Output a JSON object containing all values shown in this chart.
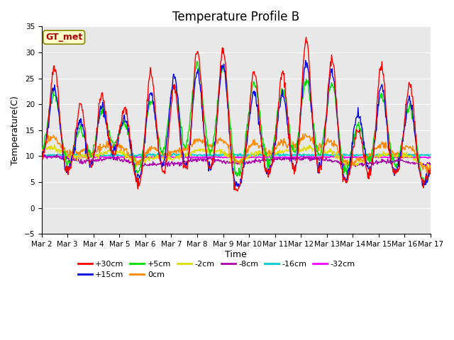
{
  "title": "Temperature Profile B",
  "xlabel": "Time",
  "ylabel": "Temperature(C)",
  "ylim": [
    -5,
    35
  ],
  "yticks": [
    -5,
    0,
    5,
    10,
    15,
    20,
    25,
    30,
    35
  ],
  "x_tick_labels": [
    "Mar 2",
    "Mar 3",
    "Mar 4",
    "Mar 5",
    "Mar 6",
    "Mar 7",
    "Mar 8",
    "Mar 9",
    "Mar 10",
    "Mar 11",
    "Mar 12",
    "Mar 13",
    "Mar 14",
    "Mar 15",
    "Mar 16",
    "Mar 17"
  ],
  "legend_entries": [
    {
      "label": "+30cm",
      "color": "#ff0000"
    },
    {
      "label": "+15cm",
      "color": "#0000ee"
    },
    {
      "label": "+5cm",
      "color": "#00dd00"
    },
    {
      "label": "0cm",
      "color": "#ff8800"
    },
    {
      "label": "-2cm",
      "color": "#dddd00"
    },
    {
      "label": "-8cm",
      "color": "#aa00aa"
    },
    {
      "label": "-16cm",
      "color": "#00cccc"
    },
    {
      "label": "-32cm",
      "color": "#ff00ff"
    }
  ],
  "annotation_text": "GT_met",
  "annotation_color": "#aa0000",
  "annotation_bg": "#ffffcc",
  "background_color": "#e8e8e8",
  "grid_color": "#ffffff",
  "title_fontsize": 12,
  "figwidth": 6.4,
  "figheight": 4.8,
  "dpi": 100
}
